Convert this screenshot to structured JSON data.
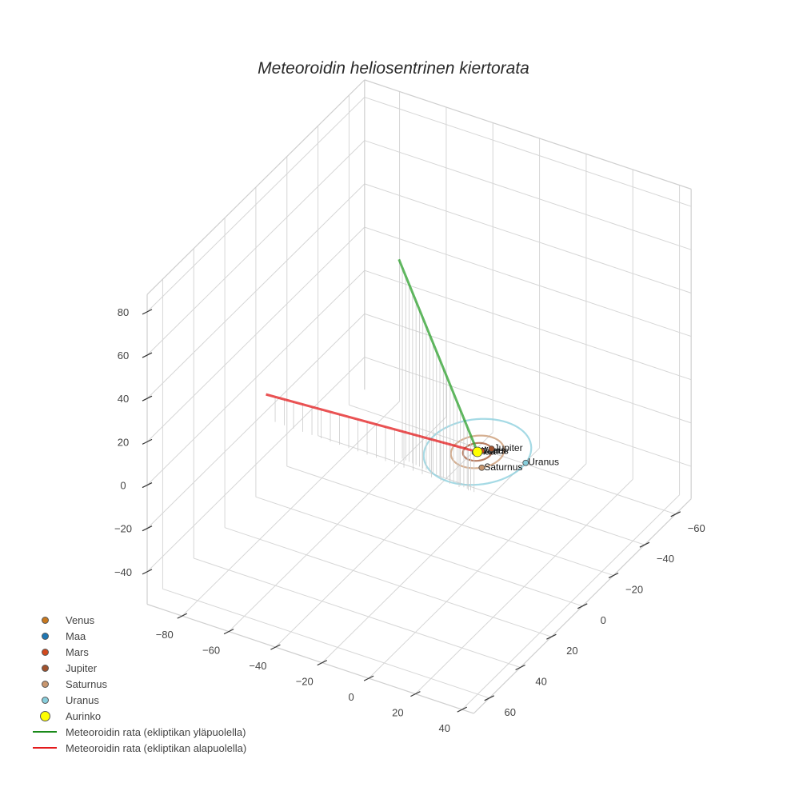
{
  "title": "Meteoroidin heliosentrinen kiertorata",
  "chart_data": {
    "type": "scatter3d",
    "title": "Meteoroidin heliosentrinen kiertorata",
    "xlabel": "",
    "ylabel": "",
    "zlabel": "",
    "x_ticks": [
      -80,
      -60,
      -40,
      -20,
      0,
      20,
      40
    ],
    "y_ticks": [
      -60,
      -40,
      -20,
      0,
      20,
      40,
      60
    ],
    "z_ticks": [
      -40,
      -20,
      0,
      20,
      40,
      60,
      80
    ],
    "xlim": [
      -95,
      45
    ],
    "ylim": [
      -70,
      70
    ],
    "zlim": [
      -55,
      88
    ],
    "grid": true,
    "legend_position": "bottom-left",
    "planets": [
      {
        "name": "Venus",
        "color": "#c8781e",
        "a": 0.72,
        "pos": [
          0.5,
          -0.5,
          0
        ]
      },
      {
        "name": "Maa",
        "color": "#1f77b4",
        "a": 1.0,
        "pos": [
          -0.7,
          0.7,
          0
        ]
      },
      {
        "name": "Mars",
        "color": "#d2491e",
        "a": 1.52,
        "pos": [
          1.0,
          -1.1,
          0
        ]
      },
      {
        "name": "Jupiter",
        "color": "#a0522d",
        "a": 5.2,
        "pos": [
          3.5,
          -3.8,
          0
        ]
      },
      {
        "name": "Saturnus",
        "color": "#c8966e",
        "a": 9.5,
        "pos": [
          6.5,
          7.0,
          0
        ]
      },
      {
        "name": "Uranus",
        "color": "#87cedc",
        "a": 19.2,
        "pos": [
          19.0,
          -2.5,
          0
        ]
      }
    ],
    "sun": {
      "name": "Aurinko",
      "color": "#ffff00",
      "pos": [
        0,
        0,
        0
      ]
    },
    "series": [
      {
        "name": "Meteoroidin rata (ekliptikan yläpuolella)",
        "color": "#2ca02c",
        "points": [
          [
            0,
            0,
            0
          ],
          [
            -37,
            -5,
            72
          ]
        ]
      },
      {
        "name": "Meteoroidin rata (ekliptikan alapuolella)",
        "color": "#e31a1c",
        "points": [
          [
            0,
            0,
            0
          ],
          [
            -92,
            -2,
            -8
          ]
        ]
      }
    ]
  },
  "legend": {
    "items": [
      {
        "label": "Venus",
        "type": "dot",
        "color": "#c8781e",
        "size": 9
      },
      {
        "label": "Maa",
        "type": "dot",
        "color": "#1f77b4",
        "size": 9
      },
      {
        "label": "Mars",
        "type": "dot",
        "color": "#d2491e",
        "size": 9
      },
      {
        "label": "Jupiter",
        "type": "dot",
        "color": "#a0522d",
        "size": 9
      },
      {
        "label": "Saturnus",
        "type": "dot",
        "color": "#c8966e",
        "size": 9
      },
      {
        "label": "Uranus",
        "type": "dot",
        "color": "#87cedc",
        "size": 9
      },
      {
        "label": "Aurinko",
        "type": "dot",
        "color": "#ffff00",
        "size": 13
      },
      {
        "label": "Meteoroidin rata (ekliptikan yläpuolella)",
        "type": "line",
        "color": "#1a8a1a"
      },
      {
        "label": "Meteoroidin rata (ekliptikan alapuolella)",
        "type": "line",
        "color": "#e31a1c"
      }
    ]
  }
}
